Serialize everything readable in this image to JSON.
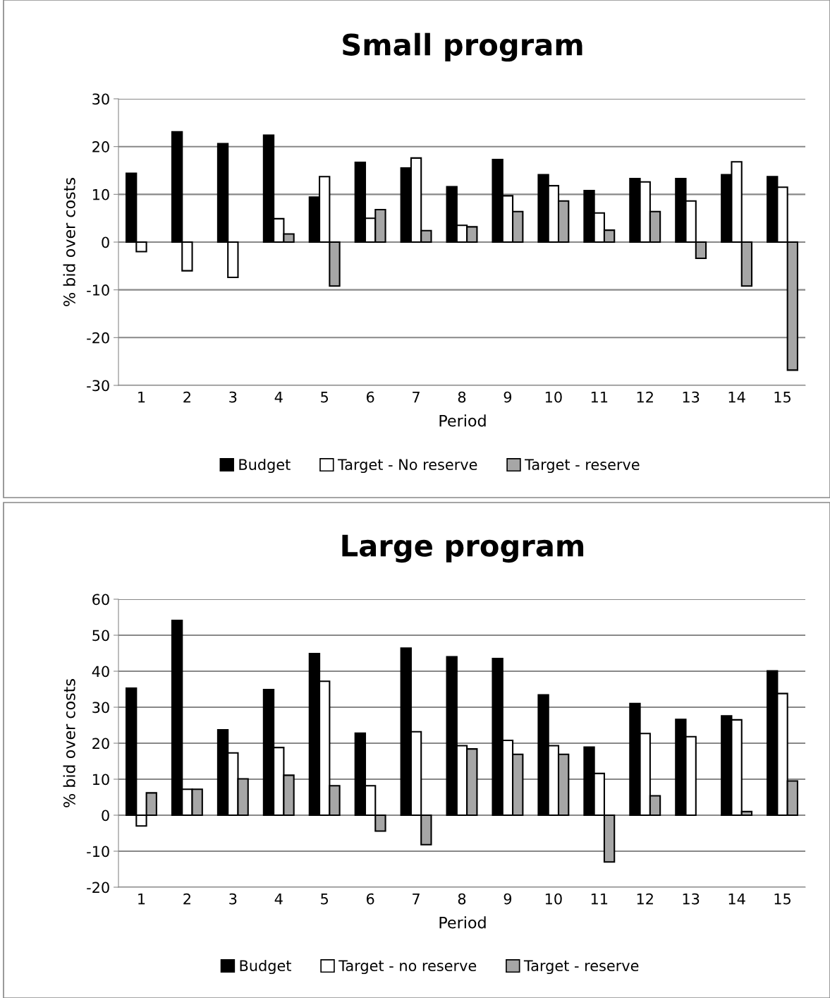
{
  "chart_data": [
    {
      "type": "bar",
      "title": "Small program",
      "xlabel": "Period",
      "ylabel": "% bid over costs",
      "categories": [
        "1",
        "2",
        "3",
        "4",
        "5",
        "6",
        "7",
        "8",
        "9",
        "10",
        "11",
        "12",
        "13",
        "14",
        "15"
      ],
      "series": [
        {
          "name": "Budget",
          "color": "#000000",
          "values": [
            14.4,
            23.1,
            20.6,
            22.4,
            9.4,
            16.7,
            15.5,
            11.6,
            17.3,
            14.1,
            10.8,
            13.3,
            13.3,
            14.1,
            13.7
          ]
        },
        {
          "name": "Target - No reserve",
          "color": "#ffffff",
          "values": [
            -2.0,
            -6.0,
            -7.4,
            4.9,
            13.7,
            5.0,
            17.6,
            3.5,
            9.7,
            11.8,
            6.1,
            12.6,
            8.6,
            16.8,
            11.5
          ]
        },
        {
          "name": "Target - reserve",
          "color": "#a6a6a6",
          "values": [
            null,
            null,
            null,
            1.7,
            -9.2,
            6.8,
            2.4,
            3.2,
            6.4,
            8.6,
            2.5,
            6.4,
            -3.4,
            -9.2,
            -26.8
          ]
        }
      ],
      "ylim": [
        -30,
        30
      ],
      "yticks": [
        -30,
        -20,
        -10,
        0,
        10,
        20,
        30
      ],
      "grid": "y",
      "legend": "bottom"
    },
    {
      "type": "bar",
      "title": "Large program",
      "xlabel": "Period",
      "ylabel": "% bid over costs",
      "categories": [
        "1",
        "2",
        "3",
        "4",
        "5",
        "6",
        "7",
        "8",
        "9",
        "10",
        "11",
        "12",
        "13",
        "14",
        "15"
      ],
      "series": [
        {
          "name": "Budget",
          "color": "#000000",
          "values": [
            35.3,
            54.1,
            23.7,
            34.9,
            44.9,
            22.8,
            46.4,
            44.0,
            43.5,
            33.4,
            18.9,
            31.0,
            26.6,
            27.6,
            40.1
          ]
        },
        {
          "name": "Target - no reserve",
          "color": "#ffffff",
          "values": [
            -3.0,
            7.2,
            17.3,
            18.8,
            37.2,
            8.2,
            23.2,
            19.3,
            20.8,
            19.3,
            11.6,
            22.7,
            21.8,
            26.5,
            33.8
          ]
        },
        {
          "name": "Target - reserve",
          "color": "#a6a6a6",
          "values": [
            6.2,
            7.2,
            10.1,
            11.1,
            8.2,
            -4.4,
            -8.2,
            18.4,
            16.9,
            16.9,
            -13.0,
            5.4,
            null,
            1.0,
            9.5
          ]
        }
      ],
      "ylim": [
        -20,
        60
      ],
      "yticks": [
        -20,
        -10,
        0,
        10,
        20,
        30,
        40,
        50,
        60
      ],
      "grid": "y",
      "legend": "bottom"
    }
  ]
}
